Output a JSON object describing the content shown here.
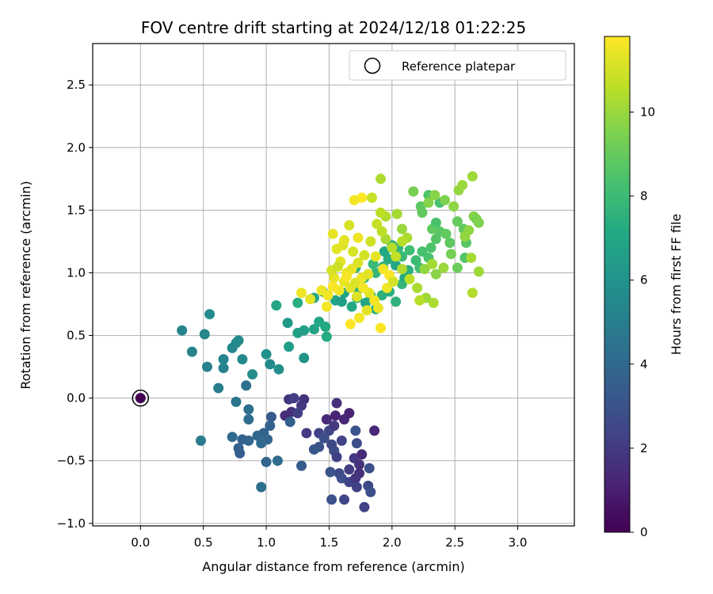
{
  "chart_data": {
    "type": "scatter",
    "title": "FOV centre drift starting at 2024/12/18 01:22:25",
    "xlabel": "Angular distance from reference (arcmin)",
    "ylabel": "Rotation from reference (arcmin)",
    "xlim": [
      -0.38,
      3.45
    ],
    "ylim": [
      -1.02,
      2.83
    ],
    "xticks": [
      "0.0",
      "0.5",
      "1.0",
      "1.5",
      "2.0",
      "2.5",
      "3.0"
    ],
    "xtick_values": [
      0,
      0.5,
      1.0,
      1.5,
      2.0,
      2.5,
      3.0
    ],
    "yticks": [
      "−1.0",
      "−0.5",
      "0.0",
      "0.5",
      "1.0",
      "1.5",
      "2.0",
      "2.5"
    ],
    "ytick_values": [
      -1.0,
      -0.5,
      0,
      0.5,
      1.0,
      1.5,
      2.0,
      2.5
    ],
    "grid": true,
    "legend": {
      "placement": "top-right",
      "entries": [
        "Reference platepar"
      ]
    },
    "reference_point": {
      "x": 0.0,
      "y": 0.0,
      "hours": 0
    },
    "colorbar": {
      "label": "Hours from first FF file",
      "colormap": "viridis",
      "range": [
        0,
        11.8
      ],
      "ticks": [
        "0",
        "2",
        "4",
        "6",
        "8",
        "10"
      ],
      "tick_values": [
        0,
        2,
        4,
        6,
        8,
        10
      ]
    },
    "series": [
      {
        "color_by": "hours",
        "points": [
          [
            1.18,
            -0.01,
            1.8
          ],
          [
            1.22,
            0.0,
            2.1
          ],
          [
            1.3,
            -0.01,
            1.7
          ],
          [
            1.28,
            -0.06,
            1.9
          ],
          [
            1.2,
            -0.11,
            1.6
          ],
          [
            1.25,
            -0.12,
            2.2
          ],
          [
            1.15,
            -0.14,
            1.5
          ],
          [
            1.32,
            -0.28,
            2.0
          ],
          [
            1.42,
            -0.28,
            2.3
          ],
          [
            1.5,
            -0.26,
            2.5
          ],
          [
            1.48,
            -0.17,
            1.4
          ],
          [
            1.55,
            -0.14,
            1.2
          ],
          [
            1.62,
            -0.17,
            1.3
          ],
          [
            1.66,
            -0.12,
            1.1
          ],
          [
            1.56,
            -0.04,
            1.6
          ],
          [
            1.54,
            -0.22,
            1.9
          ],
          [
            1.6,
            -0.34,
            2.4
          ],
          [
            1.52,
            -0.37,
            2.6
          ],
          [
            1.46,
            -0.32,
            2.8
          ],
          [
            1.42,
            -0.39,
            3.0
          ],
          [
            1.54,
            -0.42,
            2.7
          ],
          [
            1.56,
            -0.47,
            2.2
          ],
          [
            1.7,
            -0.48,
            1.9
          ],
          [
            1.76,
            -0.45,
            1.4
          ],
          [
            1.74,
            -0.53,
            1.7
          ],
          [
            1.66,
            -0.57,
            2.1
          ],
          [
            1.74,
            -0.6,
            1.6
          ],
          [
            1.58,
            -0.6,
            2.6
          ],
          [
            1.6,
            -0.64,
            2.9
          ],
          [
            1.66,
            -0.67,
            2.4
          ],
          [
            1.71,
            -0.64,
            1.8
          ],
          [
            1.72,
            -0.71,
            2.3
          ],
          [
            1.81,
            -0.7,
            2.6
          ],
          [
            1.83,
            -0.75,
            2.8
          ],
          [
            1.78,
            -0.87,
            2.3
          ],
          [
            1.62,
            -0.81,
            2.5
          ],
          [
            1.52,
            -0.81,
            2.9
          ],
          [
            1.51,
            -0.59,
            3.1
          ],
          [
            1.72,
            -0.36,
            2.8
          ],
          [
            1.86,
            -0.26,
            1.3
          ],
          [
            1.82,
            -0.56,
            2.9
          ],
          [
            1.71,
            -0.26,
            3.1
          ],
          [
            1.38,
            -0.41,
            3.2
          ],
          [
            1.28,
            -0.54,
            3.4
          ],
          [
            1.19,
            -0.19,
            3.6
          ],
          [
            1.04,
            -0.15,
            3.3
          ],
          [
            1.03,
            -0.22,
            3.7
          ],
          [
            0.98,
            -0.28,
            3.6
          ],
          [
            1.01,
            -0.33,
            3.8
          ],
          [
            0.93,
            -0.3,
            3.9
          ],
          [
            0.96,
            -0.36,
            4.1
          ],
          [
            0.86,
            -0.34,
            3.8
          ],
          [
            0.81,
            -0.33,
            3.7
          ],
          [
            0.78,
            -0.4,
            3.6
          ],
          [
            0.79,
            -0.44,
            3.5
          ],
          [
            0.73,
            -0.31,
            4.0
          ],
          [
            0.86,
            -0.17,
            4.2
          ],
          [
            0.86,
            -0.09,
            4.3
          ],
          [
            0.84,
            0.1,
            4.4
          ],
          [
            0.76,
            -0.03,
            4.6
          ],
          [
            1.0,
            -0.51,
            3.9
          ],
          [
            1.09,
            -0.5,
            4.1
          ],
          [
            0.96,
            -0.71,
            4.3
          ],
          [
            0.48,
            -0.34,
            4.9
          ],
          [
            0.62,
            0.08,
            5.0
          ],
          [
            0.53,
            0.25,
            5.1
          ],
          [
            0.66,
            0.24,
            5.2
          ],
          [
            0.73,
            0.4,
            5.4
          ],
          [
            0.76,
            0.44,
            5.5
          ],
          [
            0.78,
            0.46,
            5.6
          ],
          [
            0.66,
            0.31,
            5.3
          ],
          [
            0.81,
            0.31,
            5.5
          ],
          [
            0.89,
            0.19,
            5.7
          ],
          [
            0.51,
            0.51,
            5.4
          ],
          [
            0.41,
            0.37,
            5.2
          ],
          [
            0.33,
            0.54,
            5.3
          ],
          [
            0.55,
            0.67,
            5.6
          ],
          [
            1.0,
            0.35,
            5.9
          ],
          [
            1.03,
            0.27,
            5.6
          ],
          [
            1.1,
            0.23,
            5.8
          ],
          [
            1.3,
            0.32,
            6.0
          ],
          [
            1.17,
            0.6,
            6.3
          ],
          [
            1.18,
            0.41,
            6.5
          ],
          [
            1.25,
            0.52,
            6.6
          ],
          [
            1.3,
            0.54,
            6.7
          ],
          [
            1.38,
            0.55,
            6.8
          ],
          [
            1.42,
            0.61,
            7.0
          ],
          [
            1.48,
            0.49,
            7.2
          ],
          [
            1.47,
            0.57,
            7.1
          ],
          [
            1.08,
            0.74,
            6.9
          ],
          [
            1.25,
            0.76,
            7.3
          ],
          [
            1.38,
            0.8,
            7.0
          ],
          [
            1.45,
            0.85,
            6.7
          ],
          [
            1.55,
            0.78,
            6.8
          ],
          [
            1.6,
            0.77,
            6.6
          ],
          [
            1.62,
            0.84,
            6.9
          ],
          [
            1.68,
            0.73,
            7.1
          ],
          [
            1.72,
            0.8,
            7.3
          ],
          [
            1.73,
            0.87,
            7.4
          ],
          [
            1.79,
            0.76,
            6.9
          ],
          [
            1.83,
            0.82,
            7.0
          ],
          [
            1.87,
            0.71,
            7.2
          ],
          [
            1.92,
            0.82,
            7.5
          ],
          [
            1.98,
            0.85,
            7.4
          ],
          [
            2.03,
            0.77,
            7.6
          ],
          [
            2.08,
            0.91,
            7.8
          ],
          [
            2.1,
            0.96,
            7.2
          ],
          [
            2.13,
            1.02,
            7.4
          ],
          [
            2.03,
            1.06,
            7.0
          ],
          [
            1.97,
            1.11,
            7.3
          ],
          [
            1.94,
            1.17,
            7.1
          ],
          [
            2.0,
            1.22,
            7.5
          ],
          [
            2.05,
            1.2,
            7.7
          ],
          [
            1.93,
            1.05,
            7.6
          ],
          [
            1.87,
            1.0,
            7.8
          ],
          [
            1.85,
            1.07,
            7.9
          ],
          [
            1.78,
            0.96,
            7.7
          ],
          [
            1.71,
            1.04,
            7.5
          ],
          [
            2.08,
            1.13,
            7.9
          ],
          [
            2.14,
            1.18,
            8.1
          ],
          [
            2.19,
            1.1,
            8.0
          ],
          [
            2.22,
            1.04,
            8.2
          ],
          [
            2.24,
            1.17,
            8.3
          ],
          [
            2.29,
            1.12,
            8.4
          ],
          [
            2.31,
            1.2,
            8.5
          ],
          [
            2.35,
            1.27,
            8.6
          ],
          [
            2.38,
            1.33,
            8.7
          ],
          [
            2.43,
            1.31,
            8.9
          ],
          [
            2.46,
            1.24,
            8.8
          ],
          [
            2.52,
            1.41,
            9.0
          ],
          [
            2.57,
            1.35,
            8.9
          ],
          [
            2.59,
            1.24,
            8.7
          ],
          [
            2.58,
            1.12,
            8.6
          ],
          [
            2.52,
            1.04,
            9.1
          ],
          [
            2.47,
            1.15,
            9.3
          ],
          [
            2.32,
            1.35,
            8.9
          ],
          [
            2.35,
            1.4,
            8.4
          ],
          [
            2.38,
            1.56,
            8.3
          ],
          [
            2.29,
            1.62,
            8.5
          ],
          [
            2.23,
            1.53,
            8.8
          ],
          [
            2.24,
            1.48,
            8.9
          ],
          [
            2.17,
            1.65,
            9.4
          ],
          [
            2.29,
            1.56,
            9.6
          ],
          [
            2.34,
            1.62,
            9.7
          ],
          [
            2.42,
            1.58,
            9.5
          ],
          [
            2.49,
            1.53,
            9.8
          ],
          [
            2.53,
            1.66,
            9.9
          ],
          [
            2.56,
            1.7,
            10.0
          ],
          [
            2.64,
            1.77,
            10.1
          ],
          [
            2.65,
            1.45,
            9.6
          ],
          [
            2.67,
            1.43,
            9.4
          ],
          [
            2.69,
            1.4,
            9.5
          ],
          [
            2.61,
            1.34,
            9.8
          ],
          [
            2.58,
            1.29,
            9.9
          ],
          [
            2.69,
            1.01,
            10.1
          ],
          [
            2.63,
            1.12,
            10.2
          ],
          [
            2.64,
            0.84,
            10.4
          ],
          [
            2.41,
            1.04,
            10.0
          ],
          [
            2.35,
            0.99,
            9.7
          ],
          [
            2.26,
            1.03,
            9.9
          ],
          [
            2.32,
            1.07,
            10.2
          ],
          [
            2.33,
            0.76,
            10.3
          ],
          [
            2.27,
            0.8,
            10.1
          ],
          [
            2.22,
            0.78,
            10.5
          ],
          [
            2.2,
            0.88,
            10.3
          ],
          [
            2.14,
            0.95,
            10.6
          ],
          [
            2.08,
            1.03,
            10.4
          ],
          [
            2.03,
            1.13,
            10.7
          ],
          [
            2.0,
            1.2,
            10.5
          ],
          [
            1.95,
            1.27,
            10.3
          ],
          [
            1.92,
            1.33,
            10.6
          ],
          [
            1.88,
            1.39,
            10.8
          ],
          [
            1.95,
            1.45,
            10.4
          ],
          [
            1.91,
            1.75,
            10.3
          ],
          [
            1.84,
            1.6,
            10.8
          ],
          [
            2.04,
            1.47,
            10.2
          ],
          [
            1.91,
            1.48,
            10.6
          ],
          [
            2.08,
            1.35,
            10.0
          ],
          [
            2.12,
            1.28,
            10.3
          ],
          [
            2.08,
            1.25,
            10.5
          ],
          [
            1.83,
            1.25,
            10.9
          ],
          [
            1.78,
            1.14,
            11.0
          ],
          [
            1.73,
            1.08,
            11.2
          ],
          [
            1.69,
            1.17,
            11.1
          ],
          [
            1.61,
            1.22,
            11.2
          ],
          [
            1.56,
            1.19,
            11.3
          ],
          [
            1.53,
            1.31,
            11.4
          ],
          [
            1.59,
            1.09,
            11.3
          ],
          [
            1.64,
            1.0,
            11.5
          ],
          [
            1.62,
            0.93,
            11.4
          ],
          [
            1.58,
            0.86,
            11.6
          ],
          [
            1.53,
            0.89,
            11.7
          ],
          [
            1.49,
            0.82,
            11.6
          ],
          [
            1.44,
            0.86,
            11.5
          ],
          [
            1.48,
            0.73,
            11.6
          ],
          [
            1.54,
            0.96,
            11.4
          ],
          [
            1.67,
            0.88,
            11.3
          ],
          [
            1.71,
            0.92,
            11.2
          ],
          [
            1.76,
            0.96,
            11.5
          ],
          [
            1.82,
            0.84,
            11.4
          ],
          [
            1.86,
            0.78,
            11.7
          ],
          [
            1.89,
            0.72,
            11.5
          ],
          [
            1.8,
            0.7,
            11.3
          ],
          [
            1.74,
            0.64,
            11.6
          ],
          [
            1.67,
            0.59,
            11.8
          ],
          [
            1.91,
            0.56,
            11.7
          ],
          [
            1.96,
            0.88,
            11.5
          ],
          [
            1.98,
            0.98,
            11.7
          ],
          [
            1.93,
            1.03,
            11.6
          ],
          [
            1.87,
            1.13,
            11.4
          ],
          [
            1.73,
            1.28,
            11.5
          ],
          [
            1.62,
            1.26,
            11.3
          ],
          [
            1.66,
            1.38,
            11.1
          ],
          [
            1.76,
            1.6,
            11.8
          ],
          [
            1.7,
            1.58,
            11.6
          ],
          [
            1.35,
            0.79,
            11.3
          ],
          [
            1.28,
            0.84,
            11.5
          ],
          [
            1.52,
            1.02,
            11.1
          ],
          [
            1.57,
            1.05,
            10.9
          ],
          [
            2.01,
            0.93,
            11.1
          ],
          [
            1.64,
            0.97,
            11.7
          ],
          [
            1.68,
            1.03,
            11.4
          ],
          [
            1.72,
            0.81,
            11.2
          ],
          [
            1.77,
            0.88,
            11.6
          ],
          [
            1.81,
            0.99,
            11.3
          ]
        ]
      }
    ]
  }
}
